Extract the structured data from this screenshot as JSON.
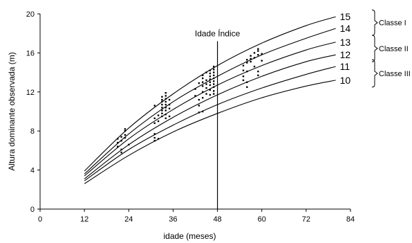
{
  "chart_data": {
    "type": "line",
    "xlabel": "idade (meses)",
    "ylabel": "Altura dominante observada (m)",
    "xlim": [
      0,
      84
    ],
    "ylim": [
      0,
      20
    ],
    "x_ticks": [
      "0",
      "12",
      "24",
      "36",
      "48",
      "60",
      "72",
      "84"
    ],
    "y_ticks": [
      "0",
      "4",
      "8",
      "12",
      "16",
      "20"
    ],
    "grid": false,
    "legend": "none",
    "annotation": {
      "label": "Idade Índice",
      "x": 48
    },
    "series": [
      {
        "name": "15",
        "x": [
          12,
          24,
          36,
          48,
          60,
          72,
          80
        ],
        "y": [
          3.9,
          8.3,
          11.8,
          14.7,
          17.0,
          18.8,
          19.7
        ]
      },
      {
        "name": "14",
        "x": [
          12,
          24,
          36,
          48,
          60,
          72,
          80
        ],
        "y": [
          3.6,
          7.7,
          11.0,
          13.6,
          15.8,
          17.5,
          18.5
        ]
      },
      {
        "name": "13",
        "x": [
          12,
          24,
          36,
          48,
          60,
          72,
          80
        ],
        "y": [
          3.4,
          7.2,
          10.2,
          12.7,
          14.7,
          16.3,
          17.1
        ]
      },
      {
        "name": "12",
        "x": [
          12,
          24,
          36,
          48,
          60,
          72,
          80
        ],
        "y": [
          3.1,
          6.6,
          9.4,
          11.7,
          13.6,
          15.1,
          15.8
        ]
      },
      {
        "name": "11",
        "x": [
          12,
          24,
          36,
          48,
          60,
          72,
          80
        ],
        "y": [
          2.9,
          6.1,
          8.6,
          10.7,
          12.4,
          13.8,
          14.6
        ]
      },
      {
        "name": "10",
        "x": [
          12,
          24,
          36,
          48,
          60,
          72,
          80
        ],
        "y": [
          2.6,
          5.5,
          7.9,
          9.8,
          11.4,
          12.6,
          13.2
        ]
      }
    ],
    "class_brackets": [
      {
        "label": "Classe I",
        "from_curve": "15",
        "to_curve": "14"
      },
      {
        "label": "Classe II",
        "from_curve": "13",
        "to_curve": "12"
      },
      {
        "label": "Classe III",
        "from_curve": "11",
        "to_curve": "10"
      }
    ],
    "observations": [
      [
        21,
        7.2
      ],
      [
        21,
        6.8
      ],
      [
        21,
        6.4
      ],
      [
        22,
        7.4
      ],
      [
        22,
        7.0
      ],
      [
        22,
        6.1
      ],
      [
        22,
        5.8
      ],
      [
        23,
        8.0
      ],
      [
        23,
        7.6
      ],
      [
        23,
        7.3
      ],
      [
        23,
        8.2
      ],
      [
        24,
        6.6
      ],
      [
        31,
        10.6
      ],
      [
        31,
        9.3
      ],
      [
        31,
        8.8
      ],
      [
        31,
        7.7
      ],
      [
        31,
        7.3
      ],
      [
        31,
        7.0
      ],
      [
        32,
        9.6
      ],
      [
        32,
        9.0
      ],
      [
        32,
        7.2
      ],
      [
        33,
        11.5
      ],
      [
        33,
        11.2
      ],
      [
        33,
        11.0
      ],
      [
        33,
        10.7
      ],
      [
        33,
        10.4
      ],
      [
        33,
        10.1
      ],
      [
        33,
        9.8
      ],
      [
        33,
        9.5
      ],
      [
        34,
        11.9
      ],
      [
        34,
        11.6
      ],
      [
        34,
        11.3
      ],
      [
        34,
        11.0
      ],
      [
        34,
        10.7
      ],
      [
        34,
        10.4
      ],
      [
        34,
        10.1
      ],
      [
        34,
        9.7
      ],
      [
        34,
        9.3
      ],
      [
        35,
        11.2
      ],
      [
        35,
        10.7
      ],
      [
        35,
        10.3
      ],
      [
        35,
        9.5
      ],
      [
        42,
        12.3
      ],
      [
        42,
        11.6
      ],
      [
        43,
        10.6
      ],
      [
        43,
        9.9
      ],
      [
        43,
        11.2
      ],
      [
        43,
        12.9
      ],
      [
        44,
        13.7
      ],
      [
        44,
        13.4
      ],
      [
        44,
        13.0
      ],
      [
        44,
        12.6
      ],
      [
        44,
        12.0
      ],
      [
        44,
        11.4
      ],
      [
        44,
        10.0
      ],
      [
        45,
        14.0
      ],
      [
        45,
        13.2
      ],
      [
        45,
        12.8
      ],
      [
        45,
        12.4
      ],
      [
        45,
        11.8
      ],
      [
        46,
        14.2
      ],
      [
        46,
        13.9
      ],
      [
        46,
        13.6
      ],
      [
        46,
        13.3
      ],
      [
        46,
        13.0
      ],
      [
        46,
        12.7
      ],
      [
        46,
        12.2
      ],
      [
        46,
        11.7
      ],
      [
        47,
        14.6
      ],
      [
        47,
        14.3
      ],
      [
        47,
        14.0
      ],
      [
        47,
        13.7
      ],
      [
        47,
        13.4
      ],
      [
        47,
        13.1
      ],
      [
        47,
        12.8
      ],
      [
        47,
        12.5
      ],
      [
        47,
        12.1
      ],
      [
        47,
        11.8
      ],
      [
        55,
        14.2
      ],
      [
        55,
        13.6
      ],
      [
        55,
        13.2
      ],
      [
        55,
        14.7
      ],
      [
        56,
        15.3
      ],
      [
        56,
        15.0
      ],
      [
        56,
        14.1
      ],
      [
        56,
        13.0
      ],
      [
        56,
        12.5
      ],
      [
        57,
        15.7
      ],
      [
        57,
        15.4
      ],
      [
        57,
        15.1
      ],
      [
        58,
        16.0
      ],
      [
        58,
        15.5
      ],
      [
        58,
        14.6
      ],
      [
        59,
        16.4
      ],
      [
        59,
        16.2
      ],
      [
        59,
        15.8
      ],
      [
        59,
        14.1
      ],
      [
        59,
        13.7
      ],
      [
        60,
        15.9
      ],
      [
        60,
        15.2
      ]
    ]
  }
}
